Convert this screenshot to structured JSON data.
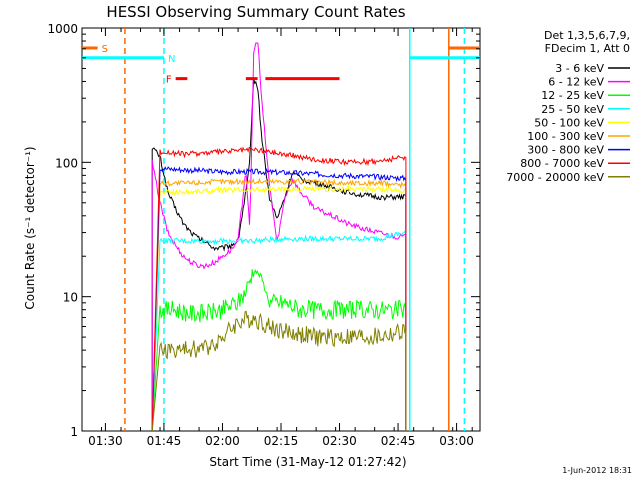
{
  "chart_data": {
    "type": "line",
    "title": "HESSI Observing Summary Count Rates",
    "xlabel": "Start Time (31-May-12 01:27:42)",
    "ylabel": "Count Rate (s⁻¹ detector⁻¹)",
    "y_scale": "log",
    "ylim": [
      1,
      1000
    ],
    "xlim": [
      "01:24",
      "03:06"
    ],
    "grid": false,
    "legend_position": "top-right, outside plot",
    "x_ticks": [
      "01:30",
      "01:45",
      "02:00",
      "02:15",
      "02:30",
      "02:45",
      "03:00"
    ],
    "y_ticks": [
      "1",
      "10",
      "100",
      "1000"
    ],
    "legend_header": [
      "Det 1,3,5,6,7,9,",
      "FDecim 1, Att 0"
    ],
    "series": [
      {
        "name": "3 - 6 keV",
        "color": "#000000",
        "x": [
          "01:42",
          "01:44",
          "01:46",
          "01:48",
          "01:50",
          "01:52",
          "01:54",
          "01:56",
          "01:58",
          "02:00",
          "02:02",
          "02:04",
          "02:05",
          "02:06",
          "02:07",
          "02:08",
          "02:09",
          "02:10",
          "02:12",
          "02:14",
          "02:16",
          "02:18",
          "02:20",
          "02:24",
          "02:28",
          "02:32",
          "02:36",
          "02:40",
          "02:44",
          "02:47"
        ],
        "values": [
          130,
          110,
          60,
          45,
          35,
          30,
          27,
          25,
          23,
          23,
          24,
          26,
          40,
          60,
          100,
          420,
          370,
          160,
          55,
          38,
          55,
          85,
          75,
          70,
          65,
          60,
          57,
          55,
          55,
          55
        ]
      },
      {
        "name": "6 - 12 keV",
        "color": "#ff00ff",
        "x": [
          "01:42",
          "01:44",
          "01:46",
          "01:48",
          "01:50",
          "01:52",
          "01:54",
          "01:56",
          "01:58",
          "02:00",
          "02:02",
          "02:04",
          "02:06",
          "02:07",
          "02:08",
          "02:09",
          "02:10",
          "02:12",
          "02:14",
          "02:16",
          "02:18",
          "02:20",
          "02:24",
          "02:28",
          "02:32",
          "02:36",
          "02:40",
          "02:44",
          "02:47"
        ],
        "values": [
          100,
          50,
          30,
          24,
          20,
          18,
          17,
          17,
          18,
          20,
          22,
          26,
          90,
          30,
          650,
          850,
          300,
          70,
          25,
          55,
          75,
          60,
          45,
          40,
          35,
          32,
          30,
          28,
          28
        ]
      },
      {
        "name": "12 - 25 keV",
        "color": "#00ff00",
        "x": [
          "01:44",
          "01:48",
          "01:52",
          "01:56",
          "02:00",
          "02:04",
          "02:06",
          "02:08",
          "02:10",
          "02:12",
          "02:16",
          "02:20",
          "02:28",
          "02:36",
          "02:44",
          "02:47"
        ],
        "values": [
          8,
          8,
          7.5,
          7.5,
          8,
          9,
          11,
          16,
          14,
          9,
          9,
          8,
          8,
          8,
          8,
          8
        ]
      },
      {
        "name": "25 - 50 keV",
        "color": "#00ffff",
        "x": [
          "01:44",
          "01:50",
          "02:00",
          "02:08",
          "02:16",
          "02:24",
          "02:32",
          "02:40",
          "02:47"
        ],
        "values": [
          26,
          26,
          26,
          26,
          27,
          27,
          27,
          27,
          30
        ]
      },
      {
        "name": "50 - 100 keV",
        "color": "#ffff00",
        "x": [
          "01:44",
          "01:50",
          "02:00",
          "02:10",
          "02:20",
          "02:30",
          "02:40",
          "02:47"
        ],
        "values": [
          60,
          60,
          62,
          63,
          63,
          63,
          63,
          62
        ]
      },
      {
        "name": "100 - 300 keV",
        "color": "#ffa500",
        "x": [
          "01:44",
          "01:50",
          "02:00",
          "02:10",
          "02:20",
          "02:30",
          "02:40",
          "02:47"
        ],
        "values": [
          70,
          70,
          72,
          72,
          72,
          70,
          70,
          68
        ]
      },
      {
        "name": "300 - 800 keV",
        "color": "#0000ff",
        "x": [
          "01:44",
          "01:50",
          "02:00",
          "02:10",
          "02:20",
          "02:30",
          "02:40",
          "02:47"
        ],
        "values": [
          90,
          88,
          85,
          85,
          83,
          80,
          78,
          76
        ]
      },
      {
        "name": "800 - 7000 keV",
        "color": "#ff0000",
        "x": [
          "01:44",
          "01:50",
          "02:00",
          "02:08",
          "02:16",
          "02:24",
          "02:32",
          "02:40",
          "02:47"
        ],
        "values": [
          120,
          115,
          120,
          125,
          115,
          105,
          100,
          102,
          110
        ]
      },
      {
        "name": "7000 - 20000 keV",
        "color": "#808000",
        "x": [
          "01:44",
          "01:50",
          "01:56",
          "02:00",
          "02:04",
          "02:08",
          "02:12",
          "02:16",
          "02:24",
          "02:32",
          "02:40",
          "02:47"
        ],
        "values": [
          4,
          4,
          4.2,
          5,
          6.5,
          7,
          6,
          5.5,
          5,
          5,
          5,
          5.5
        ]
      }
    ],
    "flags": [
      {
        "label": "S",
        "color": "#ff6600",
        "start": "01:24",
        "end": "01:28",
        "y": 710
      },
      {
        "label": "N",
        "color": "#00ffff",
        "start": "01:24",
        "end": "01:45",
        "y": 600
      },
      {
        "label": "F",
        "color": "#ff0000",
        "start": "01:48",
        "end": "01:51",
        "y": 420
      },
      {
        "label": "",
        "color": "#ff0000",
        "start": "02:06",
        "end": "02:09",
        "y": 420
      },
      {
        "label": "",
        "color": "#ff0000",
        "start": "02:11",
        "end": "02:30",
        "y": 420
      },
      {
        "label": "",
        "color": "#ff6600",
        "start": "02:58",
        "end": "03:06",
        "y": 710
      },
      {
        "label": "",
        "color": "#00ffff",
        "start": "02:48",
        "end": "03:06",
        "y": 600
      }
    ],
    "vertical_markers": [
      {
        "x": "01:35",
        "color": "#ff6600",
        "style": "dashed"
      },
      {
        "x": "01:45",
        "color": "#00ffff",
        "style": "dashed"
      },
      {
        "x": "02:48",
        "color": "#00ffff",
        "style": "solid"
      },
      {
        "x": "02:58",
        "color": "#ff6600",
        "style": "solid"
      },
      {
        "x": "03:02",
        "color": "#00ffff",
        "style": "dashed"
      }
    ],
    "timestamp": "1-Jun-2012 18:31"
  }
}
